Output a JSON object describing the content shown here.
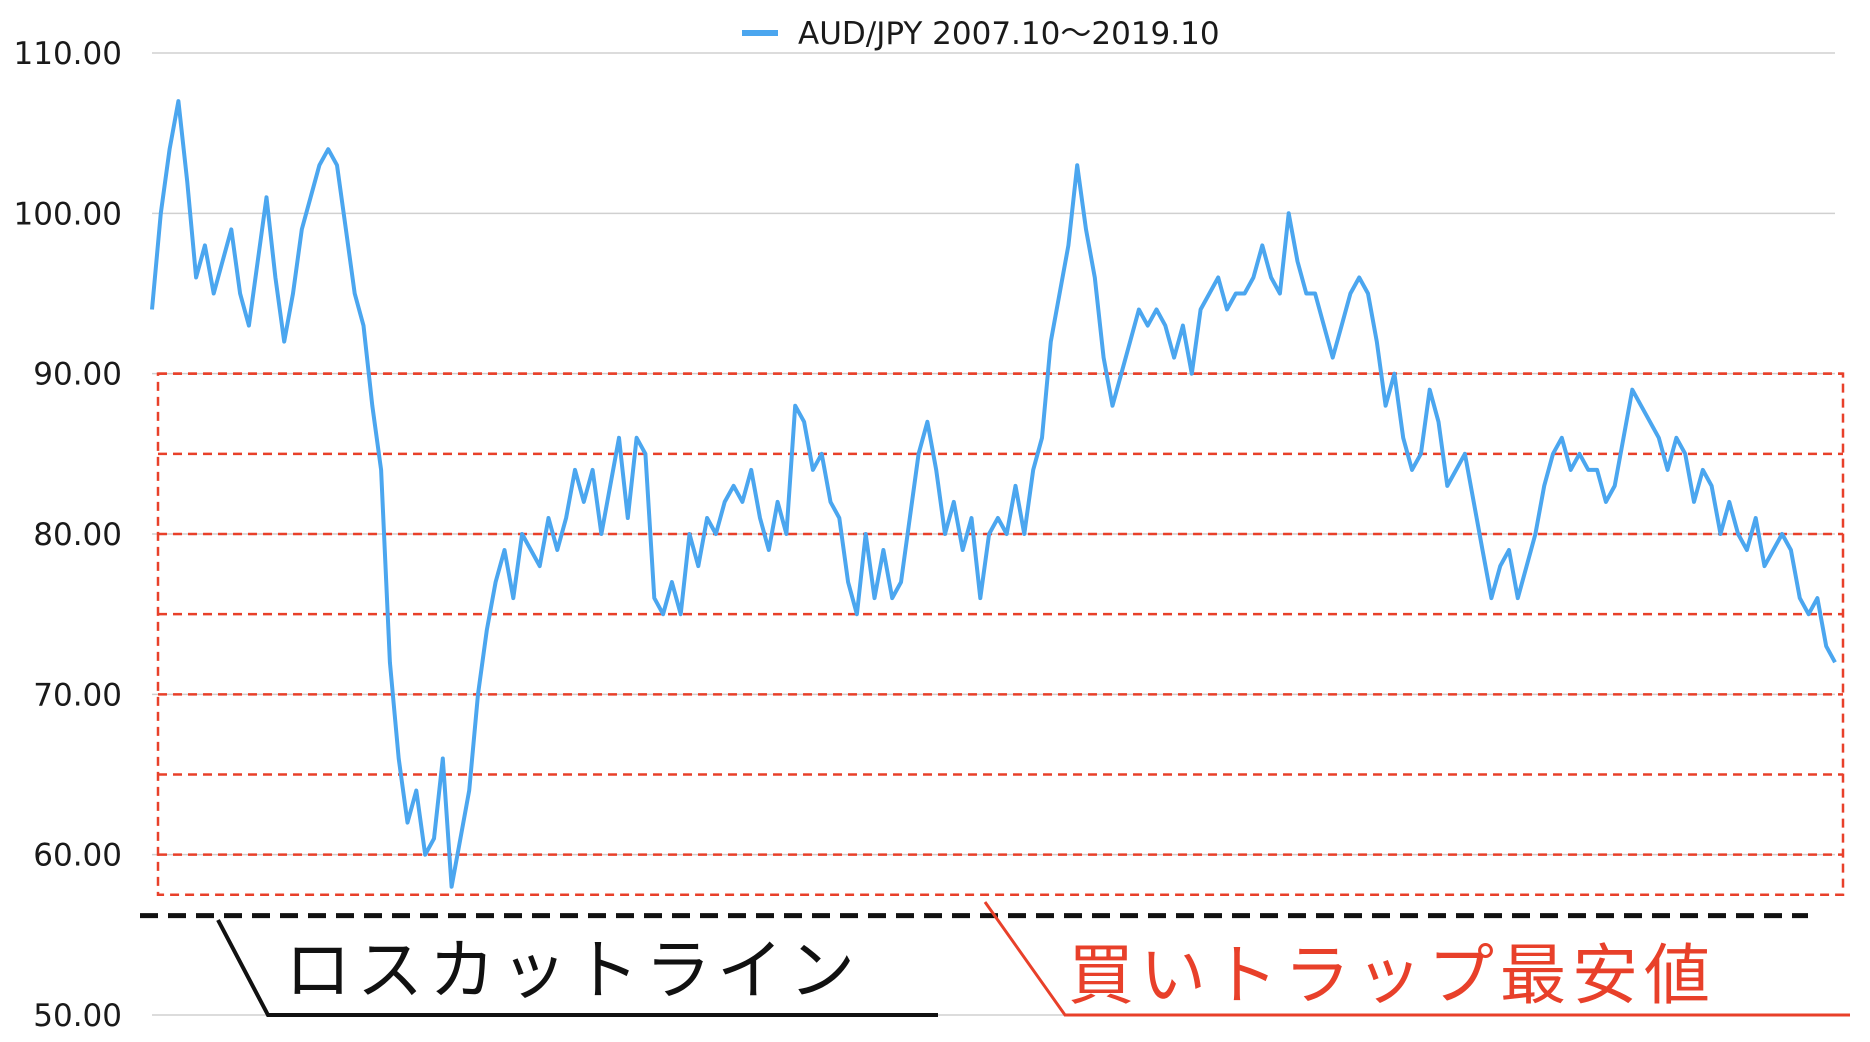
{
  "chart_data": {
    "type": "line",
    "series": [
      {
        "name": "AUD/JPY 2007.10～2019.10",
        "color": "#4ba6ef",
        "values": [
          94,
          100,
          104,
          107,
          102,
          96,
          98,
          95,
          97,
          99,
          95,
          93,
          97,
          101,
          96,
          92,
          95,
          99,
          101,
          103,
          104,
          103,
          99,
          95,
          93,
          88,
          84,
          72,
          66,
          62,
          64,
          60,
          61,
          66,
          58,
          61,
          64,
          70,
          74,
          77,
          79,
          76,
          80,
          79,
          78,
          81,
          79,
          81,
          84,
          82,
          84,
          80,
          83,
          86,
          81,
          86,
          85,
          76,
          75,
          77,
          75,
          80,
          78,
          81,
          80,
          82,
          83,
          82,
          84,
          81,
          79,
          82,
          80,
          88,
          87,
          84,
          85,
          82,
          81,
          77,
          75,
          80,
          76,
          79,
          76,
          77,
          81,
          85,
          87,
          84,
          80,
          82,
          79,
          81,
          76,
          80,
          81,
          80,
          83,
          80,
          84,
          86,
          92,
          95,
          98,
          103,
          99,
          96,
          91,
          88,
          90,
          92,
          94,
          93,
          94,
          93,
          91,
          93,
          90,
          94,
          95,
          96,
          94,
          95,
          95,
          96,
          98,
          96,
          95,
          100,
          97,
          95,
          95,
          93,
          91,
          93,
          95,
          96,
          95,
          92,
          88,
          90,
          86,
          84,
          85,
          89,
          87,
          83,
          84,
          85,
          82,
          79,
          76,
          78,
          79,
          76,
          78,
          80,
          83,
          85,
          86,
          84,
          85,
          84,
          84,
          82,
          83,
          86,
          89,
          88,
          87,
          86,
          84,
          86,
          85,
          82,
          84,
          83,
          80,
          82,
          80,
          79,
          81,
          78,
          79,
          80,
          79,
          76,
          75,
          76,
          73,
          72
        ]
      }
    ],
    "ylim": [
      50,
      110
    ],
    "yticks": [
      "110.00",
      "100.00",
      "90.00",
      "80.00",
      "70.00",
      "60.00",
      "50.00"
    ],
    "legend_position": "top-center",
    "grid": true,
    "trap_lines": [
      90,
      85,
      80,
      75,
      70,
      65,
      60
    ],
    "trap_box": {
      "top": 90,
      "bottom": 57.5,
      "color": "#e8402a"
    },
    "stop_loss_level": 56.2,
    "annotations": {
      "stop_loss_label": "ロスカットライン",
      "trap_min_label": "買いトラップ最安値"
    }
  }
}
